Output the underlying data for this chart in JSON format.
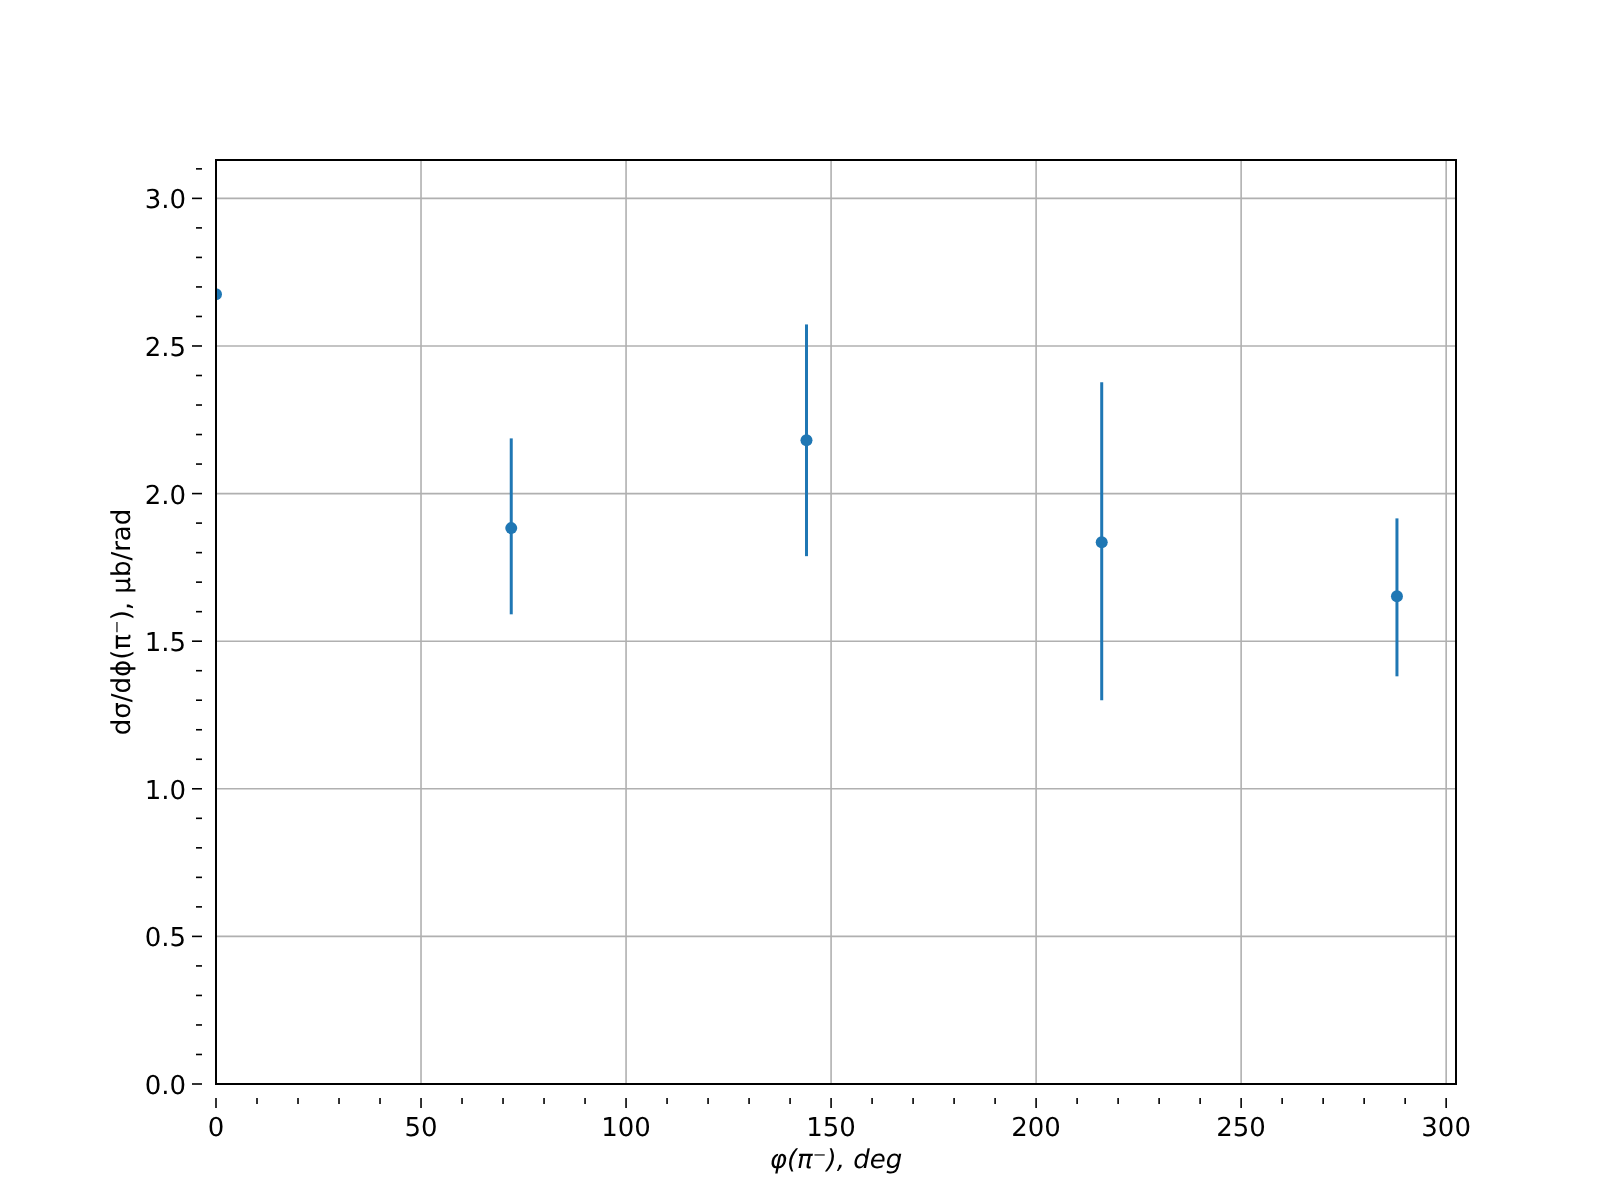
{
  "chart_data": {
    "type": "scatter",
    "xlabel": "φ(π⁻), deg",
    "ylabel": "dσ/dϕ(π⁻), μb/rad",
    "x": [
      0,
      72,
      144,
      216,
      288
    ],
    "series": [
      {
        "color": "#1f77b4",
        "values": [
          2.675,
          1.883,
          2.181,
          1.835,
          1.652
        ],
        "errors": [
          null,
          [
            1.591,
            2.187
          ],
          [
            1.788,
            2.573
          ],
          [
            1.3,
            2.377
          ],
          [
            1.381,
            1.916
          ]
        ]
      }
    ],
    "xlim": [
      0,
      302.4
    ],
    "ylim": [
      0,
      3.13
    ],
    "xticks": [
      0,
      {
        "value": 10,
        "label": null
      },
      {
        "value": 20,
        "label": null
      },
      {
        "value": 30,
        "label": null
      },
      {
        "value": 40,
        "label": null
      },
      50,
      {
        "value": 60,
        "label": null
      },
      {
        "value": 70,
        "label": null
      },
      {
        "value": 80,
        "label": null
      },
      {
        "value": 90,
        "label": null
      },
      100,
      {
        "value": 110,
        "label": null
      },
      {
        "value": 120,
        "label": null
      },
      {
        "value": 130,
        "label": null
      },
      {
        "value": 140,
        "label": null
      },
      150,
      {
        "value": 160,
        "label": null
      },
      {
        "value": 170,
        "label": null
      },
      {
        "value": 180,
        "label": null
      },
      {
        "value": 190,
        "label": null
      },
      200,
      {
        "value": 210,
        "label": null
      },
      {
        "value": 220,
        "label": null
      },
      {
        "value": 230,
        "label": null
      },
      {
        "value": 240,
        "label": null
      },
      250,
      {
        "value": 260,
        "label": null
      },
      {
        "value": 270,
        "label": null
      },
      {
        "value": 280,
        "label": null
      },
      {
        "value": 290,
        "label": null
      },
      300
    ],
    "yticks": [
      {
        "value": 0,
        "label": "0.0"
      },
      {
        "value": 0.1,
        "label": null
      },
      {
        "value": 0.2,
        "label": null
      },
      {
        "value": 0.3,
        "label": null
      },
      {
        "value": 0.4,
        "label": null
      },
      {
        "value": 0.5,
        "label": "0.5"
      },
      {
        "value": 0.6,
        "label": null
      },
      {
        "value": 0.7,
        "label": null
      },
      {
        "value": 0.8,
        "label": null
      },
      {
        "value": 0.9,
        "label": null
      },
      {
        "value": 1,
        "label": "1.0"
      },
      {
        "value": 1.1,
        "label": null
      },
      {
        "value": 1.2,
        "label": null
      },
      {
        "value": 1.3,
        "label": null
      },
      {
        "value": 1.4,
        "label": null
      },
      {
        "value": 1.5,
        "label": "1.5"
      },
      {
        "value": 1.6,
        "label": null
      },
      {
        "value": 1.7,
        "label": null
      },
      {
        "value": 1.8,
        "label": null
      },
      {
        "value": 1.9,
        "label": null
      },
      {
        "value": 2,
        "label": "2.0"
      },
      {
        "value": 2.1,
        "label": null
      },
      {
        "value": 2.2,
        "label": null
      },
      {
        "value": 2.3,
        "label": null
      },
      {
        "value": 2.4,
        "label": null
      },
      {
        "value": 2.5,
        "label": "2.5"
      },
      {
        "value": 2.6,
        "label": null
      },
      {
        "value": 2.7,
        "label": null
      },
      {
        "value": 2.8,
        "label": null
      },
      {
        "value": 2.9,
        "label": null
      },
      {
        "value": 3,
        "label": "3.0"
      },
      {
        "value": 3.1,
        "label": null
      }
    ],
    "grid": true,
    "marker": "circle"
  }
}
